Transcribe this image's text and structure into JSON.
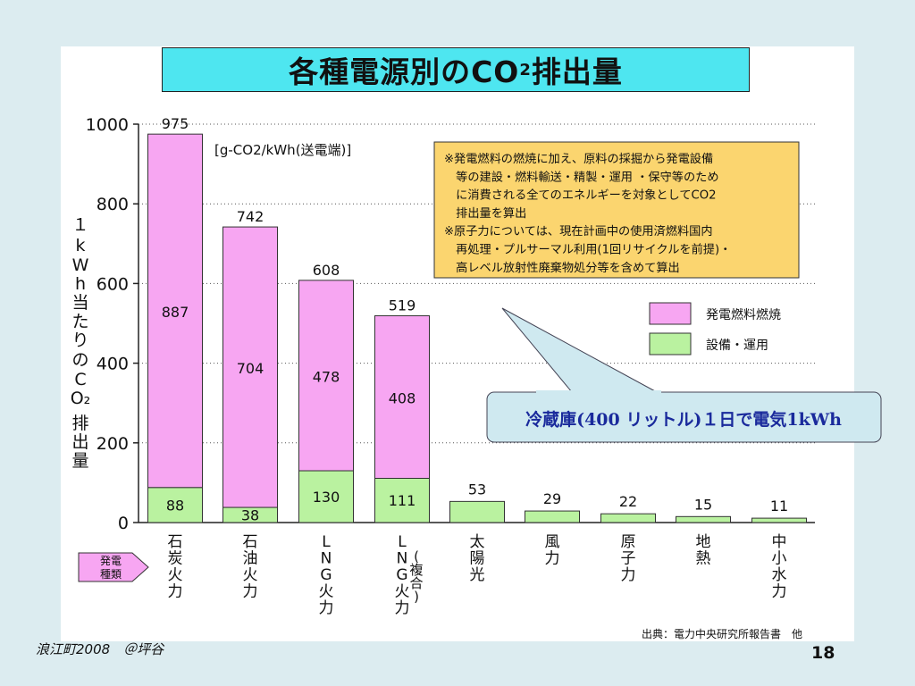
{
  "slide": {
    "title_prefix": "各種電源別のCO",
    "title_sub": "2",
    "title_suffix": "排出量",
    "unit": "[g-CO2/kWh(送電端)]",
    "note": [
      "※発電燃料の燃焼に加え、原料の採掘から発電設備",
      "　等の建設・燃料輸送・精製・運用 ・保守等のため",
      "　に消費される全てのエネルギーを対象としてCO2",
      "　排出量を算出",
      "※原子力については、現在計画中の使用済燃料国内",
      "　再処理・プルサーマル利用(1回リサイクルを前提)・",
      "　高レベル放射性廃棄物処分等を含めて算出"
    ],
    "callout": "冷蔵庫(400 リットル)１日で電気1kWh",
    "category_tag": "発電\n種類",
    "source": "出典：電力中央研究所報告書　他",
    "footer_left": "浪江町2008　＠坪谷",
    "page_number": "18",
    "colors": {
      "fuel": "#f7a6f2",
      "equipment": "#baf2a0",
      "note_bg": "#fbd56f",
      "callout_bg": "#cfe9f0",
      "tag_bg": "#f7a6f2"
    }
  },
  "chart_data": {
    "type": "bar",
    "stacked": true,
    "ylabel": "１kWh当たりのCO2排出量",
    "ylim": [
      0,
      1000
    ],
    "yticks": [
      "0",
      "200",
      "400",
      "600",
      "800",
      "1000"
    ],
    "grid": "dotted",
    "categories": [
      "石炭火力",
      "石油火力",
      "LNG火力",
      "LNG火力(複合)",
      "太陽光",
      "風力",
      "原子力",
      "地熱",
      "中小水力"
    ],
    "series": [
      {
        "name": "設備・運用",
        "values": [
          88,
          38,
          130,
          111,
          53,
          29,
          22,
          15,
          11
        ]
      },
      {
        "name": "発電燃料燃焼",
        "values": [
          887,
          704,
          478,
          408,
          0,
          0,
          0,
          0,
          0
        ]
      }
    ],
    "totals": [
      975,
      742,
      608,
      519,
      53,
      29,
      22,
      15,
      11
    ],
    "legend": [
      {
        "name": "発電燃料燃焼",
        "color": "#f7a6f2"
      },
      {
        "name": "設備・運用",
        "color": "#baf2a0"
      }
    ],
    "legend_position": "right"
  }
}
